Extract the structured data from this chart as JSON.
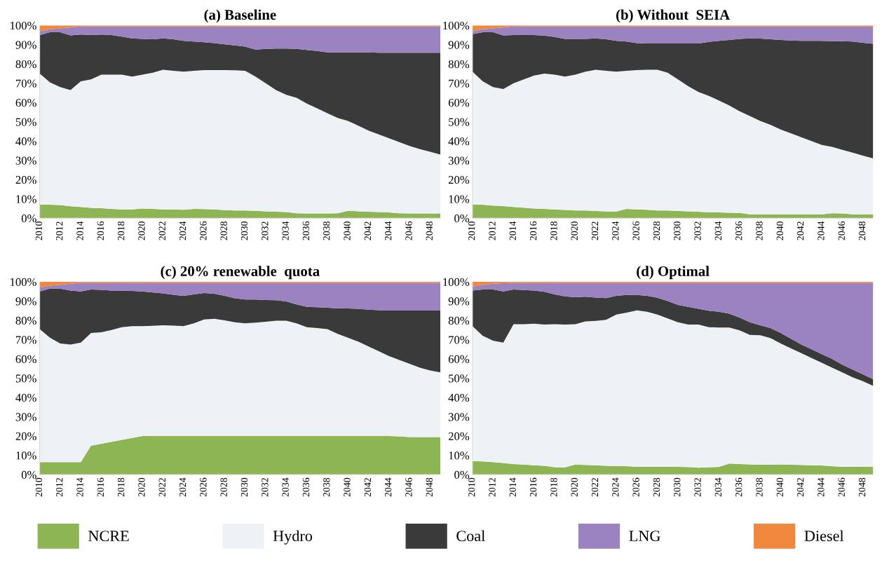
{
  "chart_data": [
    {
      "type": "area",
      "stacked": true,
      "title": "(a) Baseline",
      "legend": "bottom",
      "x": [
        2010,
        2011,
        2012,
        2013,
        2014,
        2015,
        2016,
        2017,
        2018,
        2019,
        2020,
        2021,
        2022,
        2023,
        2024,
        2025,
        2026,
        2027,
        2028,
        2029,
        2030,
        2031,
        2032,
        2033,
        2034,
        2035,
        2036,
        2037,
        2038,
        2039,
        2040,
        2041,
        2042,
        2043,
        2044,
        2045,
        2046,
        2047,
        2048,
        2049
      ],
      "xlim": [
        2010,
        2049
      ],
      "xticks": [
        2010,
        2012,
        2014,
        2016,
        2018,
        2020,
        2022,
        2024,
        2026,
        2028,
        2030,
        2032,
        2034,
        2036,
        2038,
        2040,
        2042,
        2044,
        2046,
        2048
      ],
      "ylim": [
        0,
        100
      ],
      "yticks": [
        {
          "value": 0,
          "label": "0%"
        },
        {
          "value": 10,
          "label": "10%"
        },
        {
          "value": 20,
          "label": "20%"
        },
        {
          "value": 30,
          "label": "30%"
        },
        {
          "value": 40,
          "label": "40%"
        },
        {
          "value": 50,
          "label": "50%"
        },
        {
          "value": 60,
          "label": "60%"
        },
        {
          "value": 70,
          "label": "70%"
        },
        {
          "value": 80,
          "label": "80%"
        },
        {
          "value": 90,
          "label": "90%"
        },
        {
          "value": 100,
          "label": "100%"
        }
      ],
      "series": [
        {
          "name": "NCRE",
          "color": "#8db554",
          "values": [
            7,
            7,
            6.8,
            6.2,
            5.8,
            5.4,
            5.2,
            4.8,
            4.6,
            4.6,
            5,
            4.8,
            4.6,
            4.5,
            4.4,
            4.8,
            4.7,
            4.6,
            4.2,
            4,
            4,
            3.8,
            3.6,
            3.4,
            3.2,
            2.6,
            2.5,
            2.5,
            2.5,
            2.6,
            3.8,
            3.6,
            3.4,
            3.2,
            3,
            2.6,
            2.5,
            2.5,
            2.5,
            2.5
          ]
        },
        {
          "name": "Hydro",
          "color": "#eef2f7",
          "values": [
            68,
            63.5,
            61.2,
            60.3,
            65.2,
            66.6,
            69.3,
            69.7,
            69.9,
            68.9,
            69.5,
            70.7,
            72.4,
            72,
            71.6,
            71.7,
            72.1,
            72.2,
            72.6,
            72.7,
            72.5,
            69.7,
            66.4,
            63.1,
            60.8,
            59.9,
            57,
            54.5,
            52,
            49.4,
            46.7,
            44.4,
            42.1,
            40.3,
            38.5,
            36.9,
            35,
            33.3,
            32,
            30.5
          ]
        },
        {
          "name": "Coal",
          "color": "#3a3a3a",
          "values": [
            20,
            26,
            28.5,
            28.3,
            24.3,
            23,
            20.8,
            20.5,
            19.7,
            19.8,
            18.5,
            17.3,
            16.3,
            16.3,
            16,
            15.1,
            14.5,
            14,
            13.4,
            12.9,
            12.5,
            14,
            17.8,
            21.5,
            24,
            25.3,
            27.8,
            29.7,
            31.5,
            34,
            35.5,
            38,
            40.5,
            42.3,
            44.3,
            46.3,
            48.3,
            50,
            51.3,
            52.8
          ]
        },
        {
          "name": "LNG",
          "color": "#9b82c0",
          "values": [
            2,
            1.5,
            2,
            4.2,
            4.2,
            4.5,
            4.2,
            4.5,
            5.3,
            6.2,
            6.5,
            6.7,
            6.2,
            6.7,
            7.5,
            7.9,
            8.2,
            8.7,
            9.3,
            9.9,
            10.5,
            12,
            11.7,
            11.5,
            11.5,
            11.7,
            12.2,
            12.8,
            13.5,
            13.5,
            13.5,
            13.5,
            13.5,
            13.7,
            13.7,
            13.7,
            13.7,
            13.7,
            13.7,
            13.7
          ]
        },
        {
          "name": "Diesel",
          "color": "#f0883e",
          "values": [
            3,
            2,
            1.5,
            1,
            0.5,
            0.5,
            0.5,
            0.5,
            0.5,
            0.5,
            0.5,
            0.5,
            0.5,
            0.5,
            0.5,
            0.5,
            0.5,
            0.5,
            0.5,
            0.5,
            0.5,
            0.5,
            0.5,
            0.5,
            0.5,
            0.5,
            0.5,
            0.5,
            0.5,
            0.5,
            0.5,
            0.5,
            0.5,
            0.5,
            0.5,
            0.5,
            0.5,
            0.5,
            0.5,
            0.5
          ]
        }
      ]
    },
    {
      "type": "area",
      "stacked": true,
      "title": "(b) Without  SEIA",
      "x": [
        2010,
        2011,
        2012,
        2013,
        2014,
        2015,
        2016,
        2017,
        2018,
        2019,
        2020,
        2021,
        2022,
        2023,
        2024,
        2025,
        2026,
        2027,
        2028,
        2029,
        2030,
        2031,
        2032,
        2033,
        2034,
        2035,
        2036,
        2037,
        2038,
        2039,
        2040,
        2041,
        2042,
        2043,
        2044,
        2045,
        2046,
        2047,
        2048,
        2049
      ],
      "xlim": [
        2010,
        2049
      ],
      "xticks": [
        2010,
        2012,
        2014,
        2016,
        2018,
        2020,
        2022,
        2024,
        2026,
        2028,
        2030,
        2032,
        2034,
        2036,
        2038,
        2040,
        2042,
        2044,
        2046,
        2048
      ],
      "ylim": [
        0,
        100
      ],
      "yticks": [
        {
          "value": 0,
          "label": "0%"
        },
        {
          "value": 10,
          "label": "10%"
        },
        {
          "value": 20,
          "label": "20%"
        },
        {
          "value": 30,
          "label": "30%"
        },
        {
          "value": 40,
          "label": "40%"
        },
        {
          "value": 50,
          "label": "50%"
        },
        {
          "value": 60,
          "label": "60%"
        },
        {
          "value": 70,
          "label": "70%"
        },
        {
          "value": 80,
          "label": "80%"
        },
        {
          "value": 90,
          "label": "90%"
        },
        {
          "value": 100,
          "label": "100%"
        }
      ],
      "series": [
        {
          "color": "#8db554",
          "values": [
            7,
            7,
            6.6,
            6.3,
            5.8,
            5.5,
            5,
            4.8,
            4.6,
            4.3,
            4,
            4,
            3.7,
            3.6,
            3.5,
            4.8,
            4.6,
            4.4,
            4,
            4,
            3.7,
            3.6,
            3.4,
            3,
            3,
            2.8,
            2.7,
            2,
            2,
            2,
            2,
            2,
            2,
            2,
            2,
            2.6,
            2.5,
            2,
            2,
            2
          ]
        },
        {
          "color": "#eef2f7",
          "values": [
            69,
            64,
            61.4,
            60.7,
            64.2,
            66.5,
            69,
            70.2,
            69.9,
            69.2,
            70.5,
            72,
            73.3,
            72.9,
            72.5,
            71.7,
            72.2,
            72.6,
            73,
            71.5,
            68.3,
            64.9,
            62.1,
            60.5,
            58,
            55.7,
            52.8,
            51,
            48.5,
            46.5,
            44,
            42,
            40,
            38,
            36,
            34.4,
            33,
            32,
            30.5,
            29
          ]
        },
        {
          "color": "#3a3a3a",
          "values": [
            19.5,
            25.5,
            28.5,
            27.8,
            25,
            23,
            21,
            19.7,
            19.5,
            19.5,
            18.5,
            17,
            16.3,
            16.3,
            16,
            15.1,
            14,
            13.6,
            13.6,
            15.1,
            18.6,
            22.1,
            25.1,
            28,
            31,
            34,
            37.5,
            40.3,
            42.7,
            44.3,
            46.5,
            48.2,
            50,
            52,
            54,
            54.8,
            56.3,
            57.6,
            58.5,
            59.5
          ]
        },
        {
          "color": "#9b82c0",
          "values": [
            1.5,
            1.5,
            2,
            4.2,
            4.5,
            4.5,
            4.5,
            4.8,
            5.5,
            6.5,
            6.5,
            6.5,
            6.2,
            6.7,
            7.5,
            7.9,
            8.7,
            8.9,
            8.9,
            8.9,
            8.9,
            8.9,
            8.9,
            8,
            7.5,
            7,
            6.5,
            6.2,
            6.3,
            6.7,
            7,
            7.3,
            7.5,
            7.5,
            7.5,
            7.7,
            7.7,
            7.9,
            8.5,
            9
          ]
        },
        {
          "color": "#f0883e",
          "values": [
            3,
            2,
            1.5,
            1,
            0.5,
            0.5,
            0.5,
            0.5,
            0.5,
            0.5,
            0.5,
            0.5,
            0.5,
            0.5,
            0.5,
            0.5,
            0.5,
            0.5,
            0.5,
            0.5,
            0.5,
            0.5,
            0.5,
            0.5,
            0.5,
            0.5,
            0.5,
            0.5,
            0.5,
            0.5,
            0.5,
            0.5,
            0.5,
            0.5,
            0.5,
            0.5,
            0.5,
            0.5,
            0.5,
            0.5
          ]
        }
      ]
    },
    {
      "type": "area",
      "stacked": true,
      "title": "(c) 20% renewable  quota",
      "x": [
        2010,
        2011,
        2012,
        2013,
        2014,
        2015,
        2016,
        2017,
        2018,
        2019,
        2020,
        2021,
        2022,
        2023,
        2024,
        2025,
        2026,
        2027,
        2028,
        2029,
        2030,
        2031,
        2032,
        2033,
        2034,
        2035,
        2036,
        2037,
        2038,
        2039,
        2040,
        2041,
        2042,
        2043,
        2044,
        2045,
        2046,
        2047,
        2048,
        2049
      ],
      "xlim": [
        2010,
        2049
      ],
      "xticks": [
        2010,
        2012,
        2014,
        2016,
        2018,
        2020,
        2022,
        2024,
        2026,
        2028,
        2030,
        2032,
        2034,
        2036,
        2038,
        2040,
        2042,
        2044,
        2046,
        2048
      ],
      "ylim": [
        0,
        100
      ],
      "yticks": [
        {
          "value": 0,
          "label": "0%"
        },
        {
          "value": 10,
          "label": "10%"
        },
        {
          "value": 20,
          "label": "20%"
        },
        {
          "value": 30,
          "label": "30%"
        },
        {
          "value": 40,
          "label": "40%"
        },
        {
          "value": 50,
          "label": "50%"
        },
        {
          "value": 60,
          "label": "60%"
        },
        {
          "value": 70,
          "label": "70%"
        },
        {
          "value": 80,
          "label": "80%"
        },
        {
          "value": 90,
          "label": "90%"
        },
        {
          "value": 100,
          "label": "100%"
        }
      ],
      "series": [
        {
          "color": "#8db554",
          "values": [
            6.5,
            6.5,
            6.5,
            6.5,
            6.5,
            15,
            16,
            17,
            18,
            19,
            20,
            20,
            20,
            20,
            20,
            20,
            20,
            20,
            20,
            20,
            20,
            20,
            20,
            20,
            20,
            20,
            20,
            20,
            20,
            20,
            20,
            20,
            20,
            20,
            20,
            19.8,
            19.5,
            19.5,
            19.5,
            19.5
          ]
        },
        {
          "color": "#eef2f7",
          "values": [
            69,
            64.5,
            61.5,
            61,
            62,
            58.5,
            57.8,
            58,
            58.5,
            58,
            57,
            57.2,
            57.5,
            57.3,
            57,
            58.5,
            60.5,
            60.8,
            60,
            59,
            58.5,
            58.8,
            59.3,
            59.8,
            59.8,
            58.5,
            56.5,
            56,
            55.5,
            53,
            51,
            49,
            46.5,
            44,
            41.5,
            39.7,
            38,
            36,
            34.5,
            33.5
          ]
        },
        {
          "color": "#3a3a3a",
          "values": [
            19.5,
            25.5,
            28.5,
            28,
            26.5,
            22.5,
            22,
            20.5,
            19,
            18.3,
            18,
            17.3,
            16.5,
            16,
            15.7,
            15,
            13.7,
            13,
            12.7,
            12.5,
            12.3,
            12,
            11.3,
            10.7,
            10,
            9.8,
            10.5,
            10.8,
            11.1,
            13.3,
            15.2,
            17,
            19.1,
            21.3,
            23.8,
            25.8,
            27.8,
            29.8,
            31.3,
            32.3
          ]
        },
        {
          "color": "#9b82c0",
          "values": [
            2,
            1.5,
            2,
            3.5,
            4.5,
            3.5,
            3.7,
            4,
            4,
            4.2,
            4.5,
            5,
            5.5,
            6.2,
            6.8,
            6,
            5.3,
            5.7,
            6.8,
            8,
            8.7,
            8.7,
            8.9,
            9,
            9.7,
            11.2,
            12.5,
            12.7,
            12.9,
            13.2,
            13.3,
            13.5,
            13.9,
            14.2,
            14.2,
            14.2,
            14.2,
            14.2,
            14.2,
            14.2
          ]
        },
        {
          "color": "#f0883e",
          "values": [
            3,
            2,
            1.5,
            1,
            0.5,
            0.5,
            0.5,
            0.5,
            0.5,
            0.5,
            0.5,
            0.5,
            0.5,
            0.5,
            0.5,
            0.5,
            0.5,
            0.5,
            0.5,
            0.5,
            0.5,
            0.5,
            0.5,
            0.5,
            0.5,
            0.5,
            0.5,
            0.5,
            0.5,
            0.5,
            0.5,
            0.5,
            0.5,
            0.5,
            0.5,
            0.5,
            0.5,
            0.5,
            0.5,
            0.5
          ]
        }
      ]
    },
    {
      "type": "area",
      "stacked": true,
      "title": "(d) Optimal",
      "x": [
        2010,
        2011,
        2012,
        2013,
        2014,
        2015,
        2016,
        2017,
        2018,
        2019,
        2020,
        2021,
        2022,
        2023,
        2024,
        2025,
        2026,
        2027,
        2028,
        2029,
        2030,
        2031,
        2032,
        2033,
        2034,
        2035,
        2036,
        2037,
        2038,
        2039,
        2040,
        2041,
        2042,
        2043,
        2044,
        2045,
        2046,
        2047,
        2048,
        2049
      ],
      "xlim": [
        2010,
        2049
      ],
      "xticks": [
        2010,
        2012,
        2014,
        2016,
        2018,
        2020,
        2022,
        2024,
        2026,
        2028,
        2030,
        2032,
        2034,
        2036,
        2038,
        2040,
        2042,
        2044,
        2046,
        2048
      ],
      "ylim": [
        0,
        100
      ],
      "yticks": [
        {
          "value": 0,
          "label": "0%"
        },
        {
          "value": 10,
          "label": "10%"
        },
        {
          "value": 20,
          "label": "20%"
        },
        {
          "value": 30,
          "label": "30%"
        },
        {
          "value": 40,
          "label": "40%"
        },
        {
          "value": 50,
          "label": "50%"
        },
        {
          "value": 60,
          "label": "60%"
        },
        {
          "value": 70,
          "label": "70%"
        },
        {
          "value": 80,
          "label": "80%"
        },
        {
          "value": 90,
          "label": "90%"
        },
        {
          "value": 100,
          "label": "100%"
        }
      ],
      "series": [
        {
          "color": "#8db554",
          "values": [
            7,
            6.8,
            6.5,
            6,
            5.5,
            5.2,
            4.8,
            4.6,
            3.8,
            3.7,
            5.2,
            5,
            4.8,
            4.6,
            4.4,
            4.4,
            4,
            4,
            4,
            4,
            4,
            3.9,
            3.6,
            3.8,
            4,
            5.7,
            5.5,
            5.3,
            5.1,
            5.1,
            5.3,
            5.1,
            5,
            4.8,
            4.7,
            4.4,
            4,
            4,
            4,
            4
          ]
        },
        {
          "color": "#eef2f7",
          "values": [
            70,
            65.2,
            63,
            62.5,
            72.5,
            72.8,
            73.5,
            73.2,
            74.2,
            74.1,
            72.8,
            74.5,
            74.9,
            75.7,
            78.6,
            79.6,
            81.2,
            80.5,
            79,
            77,
            75,
            73.9,
            74.2,
            72.7,
            72.3,
            70.6,
            69.3,
            67.2,
            67.2,
            65.7,
            62.7,
            60.4,
            58,
            55.7,
            53.3,
            51.1,
            49,
            46.5,
            44.5,
            42
          ]
        },
        {
          "color": "#3a3a3a",
          "values": [
            18.5,
            24,
            26.5,
            26.5,
            18,
            17.7,
            17.2,
            17,
            15.5,
            14.7,
            14,
            12.8,
            12.1,
            11.3,
            9.7,
            9.2,
            8,
            8.2,
            8.7,
            9,
            9,
            9.2,
            8.2,
            8.5,
            8.2,
            7.2,
            6.7,
            6.5,
            5.2,
            5.2,
            5.5,
            5,
            4.5,
            4.5,
            4.5,
            4.5,
            4,
            4,
            3.5,
            3.5
          ]
        },
        {
          "color": "#9b82c0",
          "values": [
            2,
            2.5,
            3,
            4.3,
            3.5,
            3.8,
            4,
            4.7,
            6,
            7,
            7.5,
            7.2,
            7.7,
            7.9,
            6.8,
            6.3,
            6.3,
            6.8,
            7.8,
            9.5,
            11.5,
            12.5,
            13.5,
            14.5,
            15,
            16,
            18,
            20.5,
            22,
            23.5,
            26,
            29,
            32,
            34.5,
            37,
            39.5,
            42.5,
            45,
            47.5,
            50
          ]
        },
        {
          "color": "#f0883e",
          "values": [
            2.5,
            1.5,
            1,
            0.7,
            0.5,
            0.5,
            0.5,
            0.5,
            0.5,
            0.5,
            0.5,
            0.5,
            0.5,
            0.5,
            0.5,
            0.5,
            0.5,
            0.5,
            0.5,
            0.5,
            0.5,
            0.5,
            0.5,
            0.5,
            0.5,
            0.5,
            0.5,
            0.5,
            0.5,
            0.5,
            0.5,
            0.5,
            0.5,
            0.5,
            0.5,
            0.5,
            0.5,
            0.5,
            0.5,
            0.5
          ]
        }
      ]
    }
  ]
}
